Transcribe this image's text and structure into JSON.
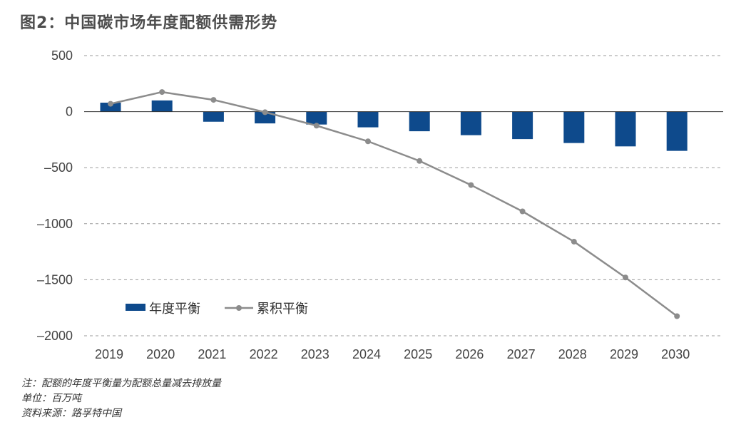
{
  "chart_data": {
    "type": "bar",
    "title": "图2：中国碳市场年度配额供需形势",
    "categories": [
      "2019",
      "2020",
      "2021",
      "2022",
      "2023",
      "2024",
      "2025",
      "2026",
      "2027",
      "2028",
      "2029",
      "2030"
    ],
    "series": [
      {
        "name": "年度平衡",
        "kind": "bar",
        "color": "#0e4a8c",
        "values": [
          80,
          100,
          -90,
          -105,
          -115,
          -140,
          -175,
          -210,
          -245,
          -280,
          -310,
          -350
        ]
      },
      {
        "name": "累积平衡",
        "kind": "line",
        "color": "#8c8c8c",
        "values": [
          70,
          175,
          105,
          -5,
          -125,
          -265,
          -440,
          -655,
          -890,
          -1160,
          -1480,
          -1825
        ]
      }
    ],
    "yticks": [
      500,
      0,
      -500,
      -1000,
      -1500,
      -2000
    ],
    "ytick_labels": [
      "500",
      "0",
      "–500",
      "–1000",
      "–1500",
      "–2000"
    ],
    "ylim": [
      -2000,
      500
    ],
    "grid": true,
    "legend_position": "lower-left"
  },
  "notes": {
    "note": "注：配额的年度平衡量为配额总量减去排放量",
    "unit": "单位：百万吨",
    "source": "资料来源：路孚特中国"
  }
}
